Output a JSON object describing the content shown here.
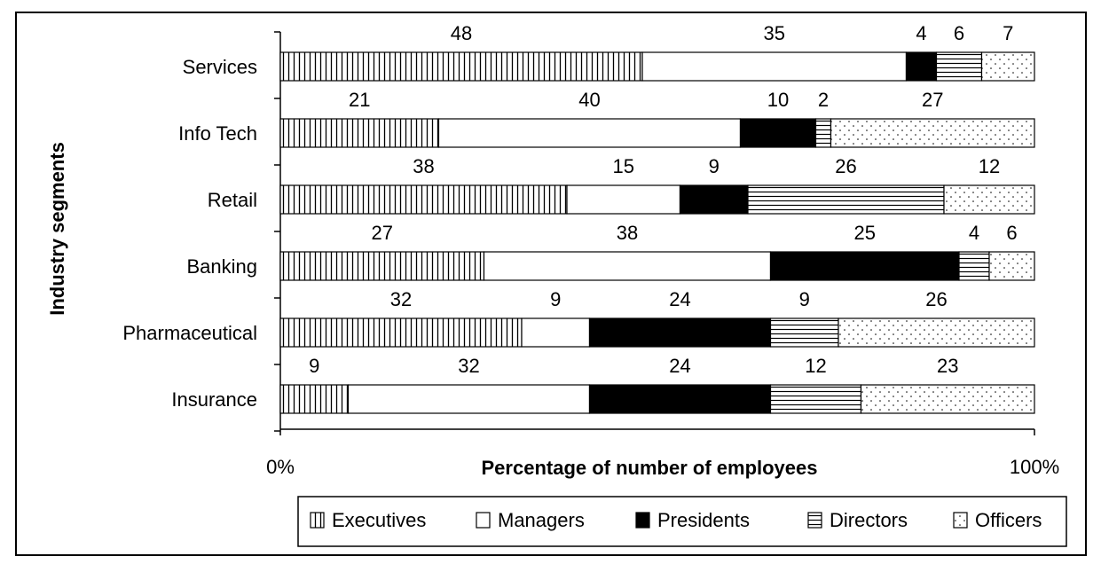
{
  "chart_data": {
    "type": "bar",
    "orientation": "horizontal",
    "stacked": true,
    "categories": [
      "Services",
      "Info Tech",
      "Retail",
      "Banking",
      "Pharmaceutical",
      "Insurance"
    ],
    "series": [
      {
        "name": "Executives",
        "pattern": "vertical-lines",
        "values": [
          48,
          21,
          38,
          27,
          32,
          9
        ]
      },
      {
        "name": "Managers",
        "pattern": "solid-white",
        "values": [
          35,
          40,
          15,
          38,
          9,
          32
        ]
      },
      {
        "name": "Presidents",
        "pattern": "solid-black",
        "values": [
          4,
          10,
          9,
          25,
          24,
          24
        ]
      },
      {
        "name": "Directors",
        "pattern": "horizontal-lines",
        "values": [
          6,
          2,
          26,
          4,
          9,
          12
        ]
      },
      {
        "name": "Officers",
        "pattern": "dots",
        "values": [
          7,
          27,
          12,
          6,
          26,
          23
        ]
      }
    ],
    "xlabel": "Percentage of number of employees",
    "ylabel": "Industry segments",
    "x_tick_labels": [
      "0%",
      "100%"
    ],
    "legend_position": "bottom-right",
    "grid": false,
    "colors": {
      "stroke": "#000000",
      "background": "#ffffff",
      "fill_dark": "#000000"
    }
  }
}
